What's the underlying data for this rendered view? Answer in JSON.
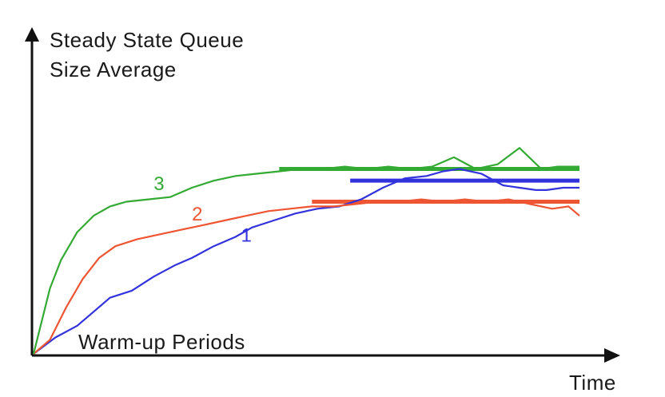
{
  "chart_data": {
    "type": "line",
    "ylabel_lines": [
      "Steady State Queue",
      "Size Average"
    ],
    "xlabel": "Time",
    "annotation": "Warm-up Periods",
    "xlim": [
      0,
      100
    ],
    "ylim": [
      0,
      100
    ],
    "grid": false,
    "series": [
      {
        "name": "1",
        "color": "#3333dd",
        "x": [
          0,
          4,
          8,
          11,
          14,
          18,
          22,
          26,
          29,
          33,
          37,
          40,
          44,
          48,
          52,
          56,
          60,
          64,
          68,
          72,
          75,
          78,
          82,
          86,
          89,
          92,
          94,
          97,
          100
        ],
        "y": [
          0,
          7,
          12,
          18,
          24,
          27,
          33,
          38,
          41,
          46,
          50,
          54,
          57,
          60,
          62,
          63,
          66,
          71,
          75,
          76,
          78,
          79,
          77,
          72,
          71,
          70,
          70,
          71,
          71
        ]
      },
      {
        "name": "2",
        "color": "#ee5533",
        "x": [
          0,
          3,
          6,
          9,
          12,
          15,
          19,
          23,
          27,
          31,
          35,
          39,
          43,
          47,
          51,
          55,
          59,
          63,
          67,
          71,
          75,
          79,
          83,
          87,
          91,
          95,
          98,
          100
        ],
        "y": [
          0,
          6,
          20,
          32,
          41,
          46,
          49,
          51,
          53,
          55,
          57,
          59,
          61,
          62,
          63,
          63,
          64,
          65,
          65,
          66,
          65,
          66,
          65,
          66,
          64,
          62,
          63,
          59
        ]
      },
      {
        "name": "3",
        "color": "#33aa33",
        "x": [
          0,
          3,
          5,
          8,
          11,
          14,
          17,
          21,
          25,
          29,
          33,
          37,
          41,
          45,
          49,
          53,
          57,
          61,
          65,
          69,
          73,
          77,
          81,
          85,
          89,
          93,
          96,
          100
        ],
        "y": [
          0,
          28,
          40,
          52,
          59,
          63,
          65,
          66,
          67,
          71,
          74,
          76,
          77,
          78,
          79,
          79,
          80,
          79,
          80,
          79,
          80,
          84,
          79,
          81,
          88,
          79,
          80,
          80
        ]
      }
    ],
    "steady_state_levels": [
      {
        "series": "3",
        "color": "#33aa33",
        "x": [
          45,
          100
        ],
        "y": 79
      },
      {
        "series": "1",
        "color": "#3333dd",
        "x": [
          58,
          100
        ],
        "y": 74
      },
      {
        "series": "2",
        "color": "#ee5533",
        "x": [
          51,
          100
        ],
        "y": 65
      }
    ]
  }
}
